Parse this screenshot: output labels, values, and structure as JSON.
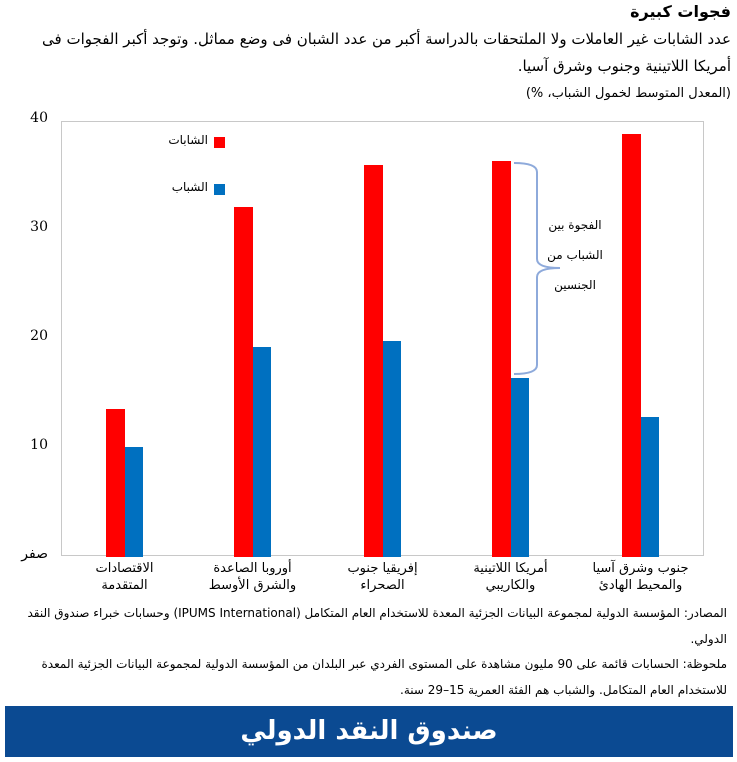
{
  "header": {
    "title": "فجوات كبيرة",
    "subtitle": "عدد الشابات غير العاملات ولا الملتحقات بالدراسة أكبر من عدد الشبان فى وضع مماثل. وتوجد أكبر الفجوات فى أمريكا اللاتينية وجنوب وشرق آسيا.",
    "unit": "(المعدل المتوسط لخمول الشباب، %)"
  },
  "chart_data": {
    "type": "bar",
    "title": "فجوات كبيرة",
    "ylabel": "المعدل المتوسط لخمول الشباب، %",
    "xlabel": "",
    "ylim": [
      0,
      40
    ],
    "yticks": [
      "صفر",
      "10",
      "20",
      "30",
      "40"
    ],
    "grid": false,
    "legend_position": "upper-left",
    "categories": [
      "الاقتصادات المتقدمة",
      "أوروبا الصاعدة والشرق الأوسط",
      "إفريقيا جنوب الصحراء",
      "أمريكا اللاتينية والكاريبي",
      "جنوب وشرق آسيا والمحيط الهادئ"
    ],
    "category_lines": [
      [
        "الاقتصادات",
        "المتقدمة"
      ],
      [
        "أوروبا الصاعدة",
        "والشرق الأوسط"
      ],
      [
        "إفريقيا جنوب",
        "الصحراء"
      ],
      [
        "أمريكا اللاتينية",
        "والكاريبي"
      ],
      [
        "جنوب وشرق آسيا",
        "والمحيط الهادئ"
      ]
    ],
    "series": [
      {
        "name": "الشابات",
        "color": "#ff0000",
        "values": [
          13.6,
          32.1,
          36.0,
          36.3,
          38.8
        ]
      },
      {
        "name": "الشباب",
        "color": "#0070c0",
        "values": [
          10.1,
          19.3,
          19.8,
          16.4,
          12.8
        ]
      }
    ],
    "annotations": [
      {
        "text_lines": [
          "الفجوة بين",
          "الشباب من",
          "الجنسين"
        ],
        "category_index": 3,
        "type": "brace"
      }
    ]
  },
  "footer": {
    "sources": "المصادر: المؤسسة الدولية لمجموعة البيانات الجزئية المعدة للاستخدام العام المتكامل (IPUMS International) وحسابات خبراء صندوق النقد الدولي.",
    "note": "ملحوظة: الحسابات قائمة على 90 مليون مشاهدة على المستوى الفردي عبر البلدان من المؤسسة الدولية لمجموعة البيانات الجزئية المعدة للاستخدام العام المتكامل. والشباب هم الفئة العمرية 15–29 سنة.",
    "banner": "صندوق النقد الدولي",
    "banner_color": "#0b4a92"
  }
}
